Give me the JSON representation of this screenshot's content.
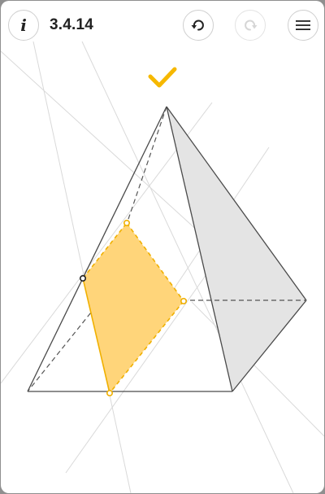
{
  "header": {
    "info_label": "i",
    "level_label": "3.4.14"
  },
  "icons": {
    "info": "info-icon",
    "undo": "undo-icon",
    "redo": "redo-icon",
    "menu": "menu-icon",
    "solved": "checkmark-icon"
  },
  "state": {
    "solved": true,
    "redo_enabled": false
  },
  "colors": {
    "accent": "#f6b800",
    "section_fill": "#ffd67a",
    "section_stroke": "#f0b000",
    "shaded_face": "#e3e3e3",
    "construction_line": "#d8d8d8"
  }
}
